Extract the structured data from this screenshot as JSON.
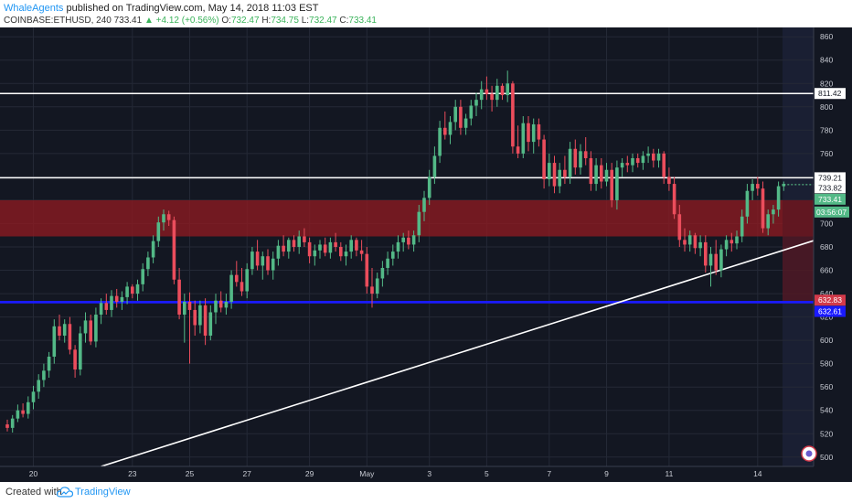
{
  "header": {
    "author": "WhaleAgents",
    "published": "published on TradingView.com, May 14, 2018 11:03 EST",
    "symbol": "COINBASE:ETHUSD, 240",
    "last": "733.41",
    "change": "+4.12 (+0.56%)",
    "o_label": "O:",
    "o": "732.47",
    "h_label": "H:",
    "h": "734.75",
    "l_label": "L:",
    "l": "732.47",
    "c_label": "C:",
    "c": "733.41"
  },
  "footer": {
    "created": "Created with",
    "brand": "TradingView"
  },
  "colors": {
    "background": "#131722",
    "up": "#53b987",
    "down": "#eb4d5c",
    "zone": "#8b1a22",
    "support": "#1a1aff",
    "price_line": "#ffffff"
  },
  "chart_data": {
    "type": "candlestick",
    "title": "",
    "ylim": [
      492,
      868
    ],
    "y_ticks": [
      500,
      520,
      540,
      560,
      580,
      600,
      620,
      640,
      660,
      680,
      700,
      720,
      740,
      760,
      780,
      800,
      820,
      840,
      860
    ],
    "x_ticks": [
      {
        "label": "20",
        "i": 5
      },
      {
        "label": "23",
        "i": 24
      },
      {
        "label": "25",
        "i": 35
      },
      {
        "label": "27",
        "i": 46
      },
      {
        "label": "29",
        "i": 58
      },
      {
        "label": "May",
        "i": 69
      },
      {
        "label": "3",
        "i": 81
      },
      {
        "label": "5",
        "i": 92
      },
      {
        "label": "7",
        "i": 104
      },
      {
        "label": "9",
        "i": 115
      },
      {
        "label": "11",
        "i": 127
      },
      {
        "label": "14",
        "i": 144
      }
    ],
    "candles": [
      [
        528,
        532,
        522,
        525
      ],
      [
        525,
        536,
        521,
        533
      ],
      [
        533,
        545,
        530,
        540
      ],
      [
        540,
        546,
        534,
        537
      ],
      [
        537,
        552,
        533,
        547
      ],
      [
        547,
        561,
        541,
        556
      ],
      [
        556,
        571,
        550,
        566
      ],
      [
        566,
        580,
        560,
        574
      ],
      [
        574,
        590,
        568,
        586
      ],
      [
        586,
        618,
        580,
        612
      ],
      [
        612,
        622,
        600,
        604
      ],
      [
        604,
        618,
        598,
        614
      ],
      [
        614,
        620,
        588,
        592
      ],
      [
        592,
        596,
        568,
        575
      ],
      [
        575,
        612,
        570,
        606
      ],
      [
        606,
        624,
        598,
        617
      ],
      [
        617,
        622,
        596,
        599
      ],
      [
        599,
        628,
        594,
        622
      ],
      [
        622,
        636,
        614,
        632
      ],
      [
        632,
        640,
        622,
        626
      ],
      [
        626,
        643,
        620,
        638
      ],
      [
        638,
        644,
        628,
        633
      ],
      [
        633,
        642,
        626,
        637
      ],
      [
        637,
        650,
        631,
        646
      ],
      [
        646,
        648,
        636,
        640
      ],
      [
        640,
        652,
        634,
        648
      ],
      [
        648,
        666,
        642,
        661
      ],
      [
        661,
        676,
        655,
        671
      ],
      [
        671,
        690,
        666,
        685
      ],
      [
        685,
        706,
        680,
        701
      ],
      [
        701,
        712,
        694,
        708
      ],
      [
        708,
        711,
        698,
        703
      ],
      [
        703,
        706,
        648,
        652
      ],
      [
        652,
        662,
        618,
        622
      ],
      [
        622,
        640,
        598,
        633
      ],
      [
        633,
        641,
        580,
        626
      ],
      [
        626,
        634,
        604,
        613
      ],
      [
        613,
        634,
        606,
        630
      ],
      [
        630,
        636,
        596,
        604
      ],
      [
        604,
        630,
        600,
        624
      ],
      [
        624,
        640,
        614,
        634
      ],
      [
        634,
        642,
        624,
        628
      ],
      [
        628,
        640,
        622,
        633
      ],
      [
        633,
        660,
        627,
        656
      ],
      [
        656,
        668,
        646,
        650
      ],
      [
        650,
        662,
        638,
        642
      ],
      [
        642,
        666,
        636,
        661
      ],
      [
        661,
        680,
        656,
        676
      ],
      [
        676,
        686,
        660,
        664
      ],
      [
        664,
        676,
        652,
        672
      ],
      [
        672,
        678,
        656,
        660
      ],
      [
        660,
        676,
        652,
        670
      ],
      [
        670,
        686,
        664,
        681
      ],
      [
        681,
        690,
        672,
        676
      ],
      [
        676,
        688,
        670,
        686
      ],
      [
        686,
        690,
        676,
        680
      ],
      [
        680,
        694,
        674,
        689
      ],
      [
        689,
        696,
        680,
        684
      ],
      [
        684,
        688,
        666,
        672
      ],
      [
        672,
        682,
        664,
        677
      ],
      [
        677,
        686,
        670,
        682
      ],
      [
        682,
        688,
        672,
        675
      ],
      [
        675,
        688,
        670,
        684
      ],
      [
        684,
        692,
        676,
        680
      ],
      [
        680,
        684,
        668,
        672
      ],
      [
        672,
        682,
        664,
        676
      ],
      [
        676,
        690,
        670,
        686
      ],
      [
        686,
        688,
        672,
        677
      ],
      [
        677,
        686,
        668,
        674
      ],
      [
        674,
        680,
        640,
        646
      ],
      [
        646,
        662,
        628,
        640
      ],
      [
        640,
        658,
        636,
        653
      ],
      [
        653,
        668,
        646,
        662
      ],
      [
        662,
        676,
        656,
        670
      ],
      [
        670,
        682,
        664,
        676
      ],
      [
        676,
        690,
        670,
        684
      ],
      [
        684,
        692,
        676,
        688
      ],
      [
        688,
        694,
        678,
        682
      ],
      [
        682,
        694,
        676,
        690
      ],
      [
        690,
        716,
        684,
        710
      ],
      [
        710,
        728,
        702,
        722
      ],
      [
        722,
        746,
        716,
        740
      ],
      [
        740,
        766,
        734,
        758
      ],
      [
        758,
        788,
        752,
        782
      ],
      [
        782,
        796,
        772,
        776
      ],
      [
        776,
        792,
        768,
        787
      ],
      [
        787,
        806,
        780,
        800
      ],
      [
        800,
        806,
        776,
        782
      ],
      [
        782,
        794,
        776,
        790
      ],
      [
        790,
        806,
        784,
        801
      ],
      [
        801,
        812,
        792,
        806
      ],
      [
        806,
        822,
        798,
        815
      ],
      [
        815,
        826,
        806,
        811
      ],
      [
        811,
        818,
        796,
        806
      ],
      [
        806,
        824,
        800,
        818
      ],
      [
        818,
        820,
        806,
        810
      ],
      [
        810,
        831,
        804,
        820
      ],
      [
        820,
        822,
        760,
        766
      ],
      [
        766,
        784,
        756,
        760
      ],
      [
        760,
        792,
        756,
        786
      ],
      [
        786,
        792,
        762,
        770
      ],
      [
        770,
        790,
        760,
        785
      ],
      [
        785,
        790,
        766,
        772
      ],
      [
        772,
        776,
        730,
        738
      ],
      [
        738,
        760,
        732,
        752
      ],
      [
        752,
        758,
        726,
        732
      ],
      [
        732,
        752,
        726,
        746
      ],
      [
        746,
        758,
        734,
        740
      ],
      [
        740,
        770,
        734,
        764
      ],
      [
        764,
        772,
        742,
        748
      ],
      [
        748,
        768,
        742,
        762
      ],
      [
        762,
        774,
        750,
        756
      ],
      [
        756,
        762,
        728,
        734
      ],
      [
        734,
        756,
        728,
        750
      ],
      [
        750,
        756,
        730,
        736
      ],
      [
        736,
        752,
        732,
        746
      ],
      [
        746,
        752,
        714,
        720
      ],
      [
        720,
        754,
        712,
        748
      ],
      [
        748,
        756,
        740,
        752
      ],
      [
        752,
        758,
        744,
        750
      ],
      [
        750,
        760,
        744,
        756
      ],
      [
        756,
        760,
        748,
        752
      ],
      [
        752,
        762,
        746,
        758
      ],
      [
        758,
        766,
        752,
        760
      ],
      [
        760,
        764,
        748,
        754
      ],
      [
        754,
        764,
        748,
        760
      ],
      [
        760,
        762,
        734,
        740
      ],
      [
        740,
        748,
        728,
        734
      ],
      [
        734,
        740,
        704,
        708
      ],
      [
        708,
        716,
        680,
        686
      ],
      [
        686,
        696,
        676,
        682
      ],
      [
        682,
        694,
        676,
        690
      ],
      [
        690,
        692,
        674,
        679
      ],
      [
        679,
        690,
        672,
        684
      ],
      [
        684,
        690,
        658,
        664
      ],
      [
        664,
        680,
        646,
        674
      ],
      [
        674,
        686,
        656,
        660
      ],
      [
        660,
        682,
        654,
        678
      ],
      [
        678,
        690,
        672,
        686
      ],
      [
        686,
        692,
        676,
        683
      ],
      [
        683,
        694,
        678,
        689
      ],
      [
        689,
        712,
        684,
        706
      ],
      [
        706,
        734,
        700,
        728
      ],
      [
        728,
        738,
        720,
        734
      ],
      [
        734,
        740,
        724,
        730
      ],
      [
        730,
        736,
        692,
        696
      ],
      [
        696,
        712,
        690,
        708
      ],
      [
        708,
        716,
        700,
        712
      ],
      [
        712,
        736,
        706,
        732
      ],
      [
        732,
        736,
        728,
        734
      ]
    ],
    "levels": [
      {
        "name": "resistance",
        "value": 811.42,
        "label": "811.42"
      },
      {
        "name": "level-739",
        "value": 739.21,
        "label": "739.21"
      },
      {
        "name": "support-upper",
        "value": 632.83,
        "label": "632.83"
      },
      {
        "name": "support-lower",
        "value": 632.61,
        "label": "632.61"
      }
    ],
    "zone": {
      "low": 689,
      "high": 720
    },
    "trendline": {
      "from": {
        "i": 18,
        "price": 492
      },
      "to": {
        "i": 158,
        "price": 690
      }
    },
    "last_price": {
      "value": 733.41,
      "label": "733.41"
    },
    "second_price": {
      "value": 733.82,
      "label": "733.82"
    },
    "countdown": {
      "label": "03:56:07"
    }
  }
}
